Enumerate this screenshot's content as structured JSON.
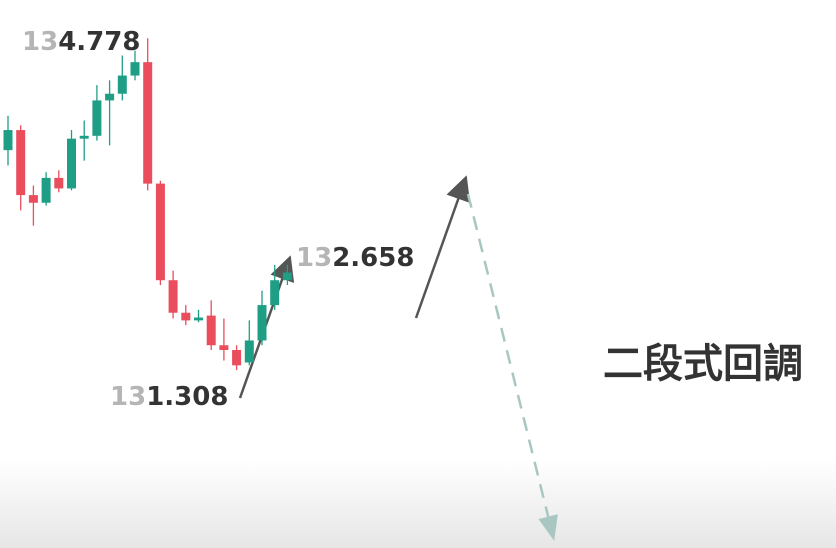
{
  "chart_data": {
    "type": "candlestick",
    "ylim": [
      129.45,
      135.18
    ],
    "up_color": "#1f9e86",
    "down_color": "#ea4d5c",
    "open": [
      133.61,
      133.82,
      133.14,
      133.06,
      133.32,
      133.21,
      133.73,
      133.76,
      134.13,
      134.2,
      134.39,
      134.53,
      133.26,
      132.25,
      131.91,
      131.83,
      131.88,
      131.57,
      131.52,
      131.39,
      131.62,
      131.99,
      132.25
    ],
    "high": [
      133.97,
      133.87,
      133.24,
      133.38,
      133.4,
      133.82,
      133.92,
      134.29,
      134.34,
      134.6,
      134.65,
      134.78,
      133.29,
      132.35,
      131.99,
      131.94,
      132.04,
      131.85,
      131.57,
      131.83,
      132.14,
      132.41,
      132.41
    ],
    "low": [
      133.45,
      132.98,
      132.82,
      133.03,
      133.17,
      133.19,
      133.5,
      133.71,
      133.66,
      134.13,
      134.34,
      133.19,
      132.2,
      131.85,
      131.78,
      131.81,
      131.52,
      131.41,
      131.31,
      131.36,
      131.57,
      131.94,
      132.2
    ],
    "close": [
      133.82,
      133.14,
      133.06,
      133.32,
      133.21,
      133.73,
      133.76,
      134.13,
      134.2,
      134.39,
      134.53,
      133.26,
      132.25,
      131.91,
      131.83,
      131.86,
      131.57,
      131.52,
      131.36,
      131.62,
      131.99,
      132.25,
      132.33
    ],
    "annotations": [
      {
        "parts": [
          "13",
          "4.778"
        ]
      },
      {
        "parts": [
          "13",
          "2.658"
        ]
      },
      {
        "parts": [
          "13",
          "1.308"
        ]
      },
      {
        "parts": [
          "二段式回調"
        ]
      }
    ]
  }
}
